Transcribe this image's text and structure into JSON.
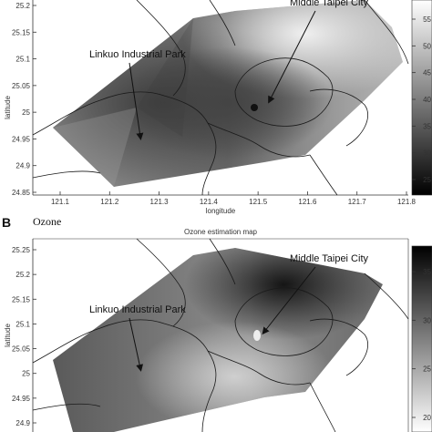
{
  "panel_a": {
    "ylabel": "latitude",
    "xlabel": "longitude",
    "yticks": [
      "25.2",
      "25.15",
      "25.1",
      "25.05",
      "25",
      "24.95",
      "24.9",
      "24.85"
    ],
    "xticks": [
      "121.1",
      "121.2",
      "121.3",
      "121.4",
      "121.5",
      "121.6",
      "121.7",
      "121.8"
    ],
    "colorbar_ticks": [
      "55",
      "50",
      "45",
      "40",
      "35",
      "30",
      "25"
    ],
    "annotations": {
      "middle_taipei": "Middle Taipei City",
      "linkuo": "Linkuo Industrial Park"
    }
  },
  "panel_b": {
    "letter": "B",
    "pollutant": "Ozone",
    "title": "Ozone estimation map",
    "ylabel": "latitude",
    "yticks": [
      "25.25",
      "25.2",
      "25.15",
      "25.1",
      "25.05",
      "25",
      "24.95",
      "24.9"
    ],
    "colorbar_ticks": [
      "35",
      "30",
      "25",
      "20"
    ],
    "annotations": {
      "middle_taipei": "Middle Taipei City",
      "linkuo": "Linkuo Industrial Park"
    }
  },
  "colors": {
    "map_dark": "#2a2a2a",
    "map_mid": "#8a8a8a",
    "map_light": "#dcdcdc",
    "boundary": "#1a1a1a"
  }
}
